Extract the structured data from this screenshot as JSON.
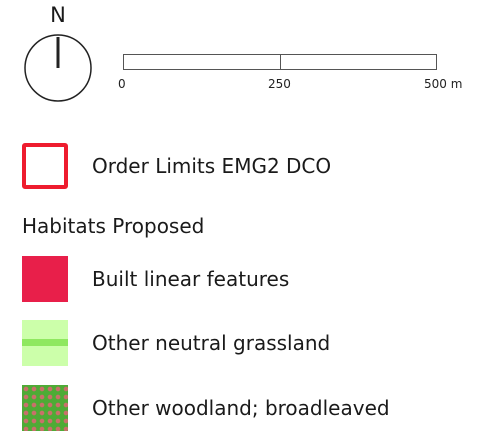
{
  "north_arrow": {
    "label": "N",
    "icon": "north-arrow-icon"
  },
  "scale_bar": {
    "labels": [
      "0",
      "250",
      "500 m"
    ]
  },
  "legend": {
    "heading": "Habitats Proposed",
    "items": [
      {
        "label": "Order Limits EMG2 DCO",
        "color": "#ee1c2e",
        "icon": "red-outline-square"
      },
      {
        "label": "Built linear features",
        "color": "#e81f4a",
        "icon": "solid-red-square"
      },
      {
        "label": "Other neutral grassland",
        "color": "#ccffaa",
        "accent": "#8fe860",
        "icon": "light-green-band-square"
      },
      {
        "label": "Other woodland; broadleaved",
        "color": "#4eab35",
        "accent": "#c9706a",
        "icon": "green-dotted-square"
      }
    ]
  }
}
